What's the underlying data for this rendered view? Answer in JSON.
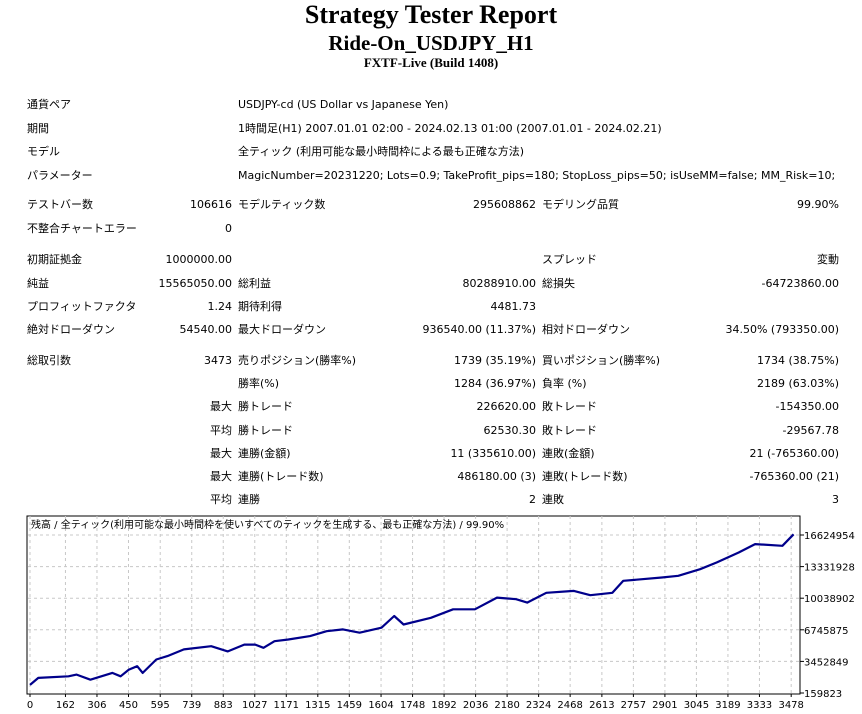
{
  "header": {
    "title": "Strategy Tester Report",
    "subtitle": "Ride-On_USDJPY_H1",
    "build": "FXTF-Live (Build 1408)"
  },
  "info_rows": [
    {
      "label": "通貨ペア",
      "value": "USDJPY-cd (US Dollar vs Japanese Yen)"
    },
    {
      "label": "期間",
      "value": "1時間足(H1) 2007.01.01 02:00 - 2024.02.13 01:00 (2007.01.01 - 2024.02.21)"
    },
    {
      "label": "モデル",
      "value": "全ティック (利用可能な最小時間枠による最も正確な方法)"
    },
    {
      "label": "パラメーター",
      "value": "MagicNumber=20231220; Lots=0.9; TakeProfit_pips=180; StopLoss_pips=50; isUseMM=false; MM_Risk=10;"
    }
  ],
  "stat_rows": [
    [
      "テストバー数",
      "106616",
      "モデルティック数",
      "295608862",
      "モデリング品質",
      "99.90%"
    ],
    [
      "不整合チャートエラー",
      "0",
      "",
      "",
      "",
      ""
    ],
    [
      "初期証拠金",
      "1000000.00",
      "",
      "",
      "スプレッド",
      "変動"
    ],
    [
      "純益",
      "15565050.00",
      "総利益",
      "80288910.00",
      "総損失",
      "-64723860.00"
    ],
    [
      "プロフィットファクタ",
      "1.24",
      "期待利得",
      "4481.73",
      "",
      ""
    ],
    [
      "絶対ドローダウン",
      "54540.00",
      "最大ドローダウン",
      "936540.00 (11.37%)",
      "相対ドローダウン",
      "34.50% (793350.00)"
    ],
    [
      "総取引数",
      "3473",
      "売りポジション(勝率%)",
      "1739 (35.19%)",
      "買いポジション(勝率%)",
      "1734 (38.75%)"
    ],
    [
      "",
      "",
      "勝率(%)",
      "1284 (36.97%)",
      "負率 (%)",
      "2189 (63.03%)"
    ],
    [
      "",
      "最大",
      "勝トレード",
      "226620.00",
      "敗トレード",
      "-154350.00"
    ],
    [
      "",
      "平均",
      "勝トレード",
      "62530.30",
      "敗トレード",
      "-29567.78"
    ],
    [
      "",
      "最大",
      "連勝(金額)",
      "11 (335610.00)",
      "連敗(金額)",
      "21 (-765360.00)"
    ],
    [
      "",
      "最大",
      "連勝(トレード数)",
      "486180.00 (3)",
      "連敗(トレード数)",
      "-765360.00 (21)"
    ],
    [
      "",
      "平均",
      "連勝",
      "2",
      "連敗",
      "3"
    ]
  ],
  "chart_data": {
    "type": "line",
    "title": "残高 / 全ティック(利用可能な最小時間枠を使いすべてのティックを生成する、最も正確な方法) / 99.90%",
    "xlabel": "",
    "ylabel": "",
    "x_ticks": [
      "0",
      "162",
      "306",
      "450",
      "595",
      "739",
      "883",
      "1027",
      "1171",
      "1315",
      "1459",
      "1604",
      "1748",
      "1892",
      "2036",
      "2180",
      "2324",
      "2468",
      "2613",
      "2757",
      "2901",
      "3045",
      "3189",
      "3333",
      "3478"
    ],
    "y_ticks": [
      "159823",
      "3452849",
      "6745875",
      "10038902",
      "13331928",
      "16624954"
    ],
    "ylim": [
      159823,
      16624954
    ],
    "xlim": [
      0,
      3500
    ],
    "line_color": "#00008b",
    "series": [
      {
        "name": "残高",
        "x": [
          0,
          38,
          176,
          213,
          276,
          376,
          414,
          452,
          490,
          515,
          577,
          628,
          703,
          828,
          904,
          979,
          1029,
          1067,
          1117,
          1180,
          1280,
          1355,
          1430,
          1506,
          1606,
          1664,
          1707,
          1832,
          1933,
          2033,
          2134,
          2221,
          2272,
          2359,
          2485,
          2560,
          2661,
          2711,
          2887,
          2962,
          3062,
          3137,
          3238,
          3313,
          3438,
          3489
        ],
        "values": [
          1000000,
          1730000,
          1900000,
          2080000,
          1550000,
          2250000,
          1900000,
          2600000,
          2950000,
          2250000,
          3650000,
          4000000,
          4700000,
          5040000,
          4500000,
          5200000,
          5200000,
          4870000,
          5560000,
          5740000,
          6090000,
          6600000,
          6790000,
          6440000,
          6960000,
          8180000,
          7300000,
          8000000,
          8880000,
          8880000,
          10100000,
          9930000,
          9580000,
          10600000,
          10800000,
          10350000,
          10600000,
          11850000,
          12200000,
          12370000,
          13060000,
          13760000,
          14800000,
          15680000,
          15500000,
          16700000
        ]
      }
    ]
  }
}
